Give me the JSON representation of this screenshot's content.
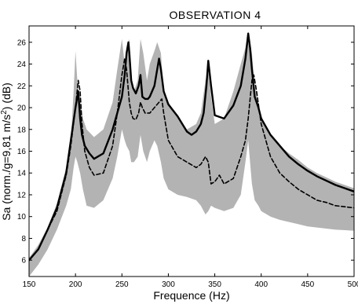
{
  "chart_data": {
    "type": "line",
    "title": "OBSERVATION  4",
    "xlabel": "Frequence (Hz)",
    "ylabel_parts": {
      "main": "Sa (norm./g=9,81 m/s",
      "sup": "2",
      "tail": ") (dB)"
    },
    "xlim": [
      150,
      500
    ],
    "ylim": [
      4.5,
      27.5
    ],
    "xticks": [
      150,
      200,
      250,
      300,
      350,
      400,
      450,
      500
    ],
    "yticks": [
      6,
      8,
      10,
      12,
      14,
      16,
      18,
      20,
      22,
      24,
      26
    ],
    "grid": false,
    "band_color": "#b3b3b3",
    "band": {
      "x": [
        150,
        160,
        170,
        180,
        190,
        195,
        198,
        200,
        202,
        205,
        208,
        212,
        220,
        230,
        240,
        245,
        250,
        253,
        255,
        258,
        260,
        263,
        267,
        270,
        273,
        277,
        280,
        285,
        288,
        292,
        295,
        300,
        310,
        320,
        330,
        335,
        340,
        343,
        346,
        350,
        360,
        370,
        378,
        383,
        386,
        390,
        393,
        397,
        400,
        410,
        420,
        430,
        440,
        450,
        460,
        470,
        480,
        490,
        500
      ],
      "upper": [
        6.2,
        7.4,
        9.0,
        11.2,
        14.5,
        17.0,
        21.5,
        25.2,
        22.5,
        20.5,
        19.0,
        18.0,
        17.3,
        18.0,
        20.5,
        23.5,
        26.3,
        24.0,
        25.5,
        26.3,
        23.0,
        21.5,
        22.5,
        26.3,
        25.0,
        22.5,
        24.0,
        25.2,
        26.0,
        25.0,
        21.5,
        20.5,
        19.2,
        18.0,
        18.5,
        19.5,
        22.5,
        23.5,
        21.0,
        18.5,
        19.0,
        21.5,
        24.0,
        25.5,
        27.0,
        25.0,
        22.0,
        20.5,
        19.2,
        17.5,
        16.5,
        15.8,
        15.2,
        14.5,
        14.0,
        13.6,
        13.2,
        12.9,
        12.6
      ],
      "lower": [
        4.5,
        5.6,
        7.0,
        8.8,
        11.0,
        12.5,
        14.5,
        15.5,
        15.0,
        14.0,
        12.5,
        11.0,
        10.8,
        11.5,
        13.5,
        15.5,
        18.0,
        17.0,
        16.5,
        16.0,
        15.0,
        15.0,
        15.5,
        17.5,
        16.0,
        15.0,
        16.0,
        17.0,
        16.5,
        15.0,
        13.5,
        12.5,
        12.0,
        11.8,
        11.5,
        11.0,
        10.2,
        10.5,
        11.0,
        10.8,
        10.5,
        10.8,
        12.0,
        15.0,
        17.0,
        13.0,
        11.5,
        11.0,
        10.5,
        10.0,
        9.7,
        9.5,
        9.3,
        9.1,
        9.0,
        8.9,
        8.8,
        8.75,
        8.7
      ]
    },
    "series": [
      {
        "style": "solid",
        "x": [
          150,
          160,
          170,
          180,
          190,
          195,
          200,
          203,
          205,
          207,
          210,
          215,
          220,
          230,
          240,
          245,
          250,
          253,
          255,
          257,
          258,
          260,
          262,
          265,
          268,
          270,
          272,
          275,
          278,
          280,
          285,
          288,
          290,
          292,
          295,
          300,
          310,
          320,
          325,
          330,
          335,
          338,
          341,
          343,
          346,
          350,
          360,
          370,
          378,
          383,
          386,
          388,
          390,
          393,
          397,
          400,
          410,
          420,
          430,
          440,
          450,
          460,
          470,
          480,
          490,
          500
        ],
        "values": [
          6.0,
          7.0,
          8.8,
          10.8,
          14.0,
          17.0,
          20.0,
          21.5,
          19.0,
          17.5,
          16.5,
          15.8,
          15.3,
          15.8,
          18.0,
          19.5,
          21.0,
          23.0,
          25.0,
          26.0,
          25.0,
          22.5,
          21.8,
          21.3,
          22.0,
          23.0,
          21.0,
          20.8,
          20.8,
          21.0,
          22.0,
          23.5,
          24.5,
          23.5,
          21.5,
          20.3,
          19.2,
          17.8,
          17.5,
          17.8,
          18.5,
          19.5,
          22.0,
          24.3,
          22.0,
          19.3,
          19.0,
          20.2,
          22.0,
          24.5,
          26.8,
          25.5,
          23.5,
          21.0,
          20.0,
          19.0,
          17.5,
          16.5,
          15.5,
          14.8,
          14.2,
          13.7,
          13.3,
          12.9,
          12.6,
          12.3
        ]
      },
      {
        "style": "dashed",
        "x": [
          150,
          160,
          170,
          180,
          190,
          195,
          200,
          203,
          205,
          207,
          210,
          215,
          220,
          230,
          240,
          245,
          250,
          253,
          255,
          258,
          260,
          262,
          265,
          268,
          270,
          272,
          275,
          280,
          285,
          290,
          293,
          295,
          300,
          310,
          320,
          330,
          335,
          340,
          343,
          346,
          350,
          355,
          360,
          370,
          378,
          383,
          386,
          390,
          392,
          395,
          400,
          410,
          420,
          430,
          440,
          450,
          460,
          470,
          480,
          490,
          500
        ],
        "values": [
          6.0,
          7.0,
          8.8,
          10.5,
          13.8,
          16.5,
          20.0,
          22.5,
          21.5,
          18.5,
          16.0,
          14.5,
          13.8,
          14.0,
          16.5,
          19.5,
          23.0,
          24.5,
          23.5,
          20.5,
          19.5,
          19.0,
          18.9,
          19.5,
          20.5,
          20.0,
          19.5,
          19.5,
          20.0,
          20.5,
          20.8,
          19.5,
          17.0,
          15.5,
          15.0,
          14.5,
          14.8,
          15.5,
          15.0,
          13.0,
          13.2,
          13.8,
          13.0,
          13.5,
          15.5,
          17.0,
          19.0,
          22.5,
          23.0,
          21.5,
          18.5,
          15.5,
          14.0,
          13.2,
          12.5,
          12.0,
          11.5,
          11.3,
          11.0,
          10.9,
          10.8
        ]
      }
    ]
  }
}
